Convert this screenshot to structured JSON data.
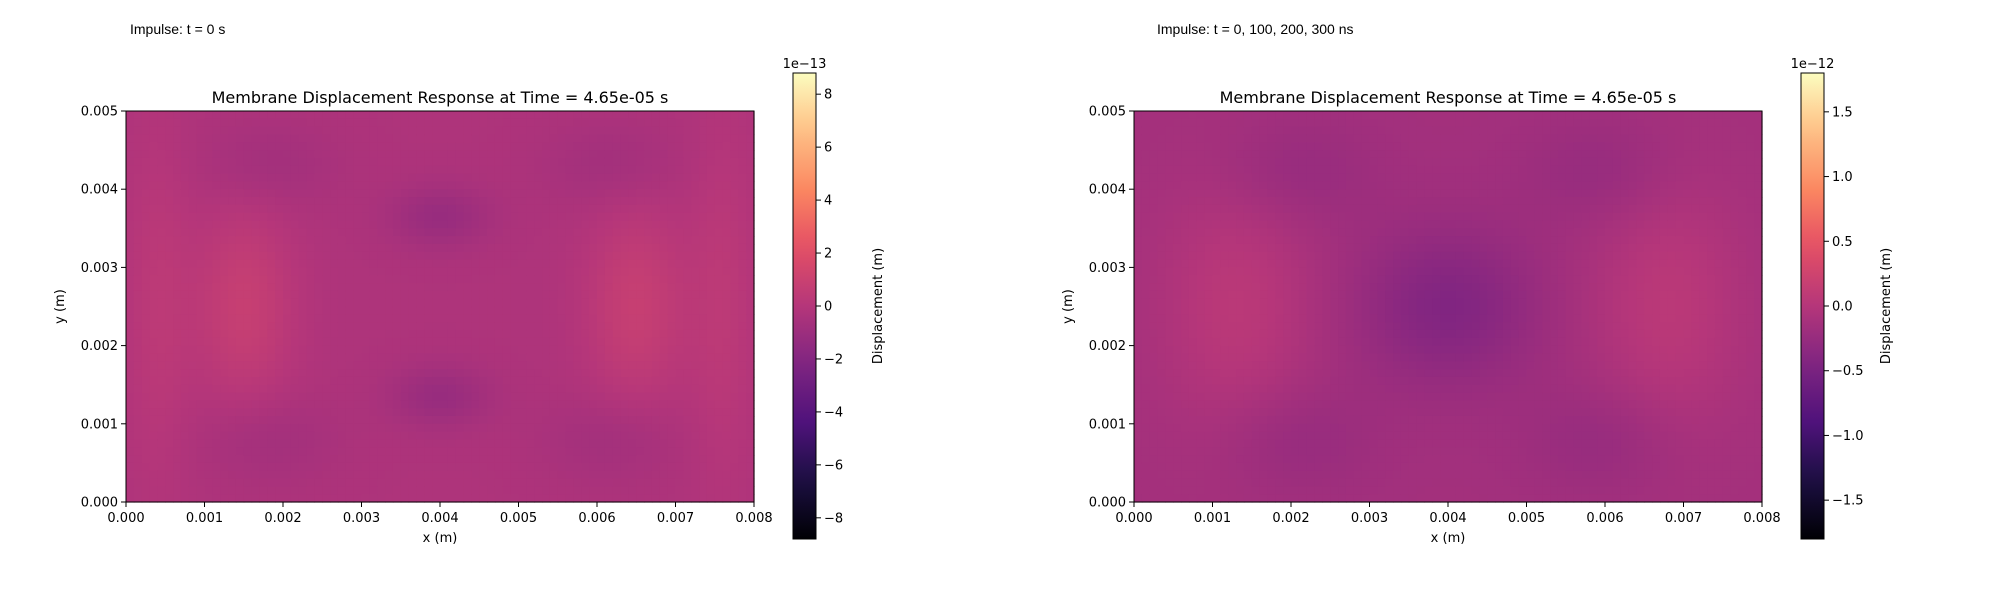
{
  "chart_data": [
    {
      "type": "heatmap",
      "caption": "Impulse: t = 0 s",
      "title": "Membrane Displacement Response at Time = 4.65e-05 s",
      "xlabel": "x (m)",
      "ylabel": "y (m)",
      "xlim": [
        0,
        0.008
      ],
      "ylim": [
        0,
        0.005
      ],
      "xticks": [
        "0.000",
        "0.001",
        "0.002",
        "0.003",
        "0.004",
        "0.005",
        "0.006",
        "0.007",
        "0.008"
      ],
      "yticks": [
        "0.000",
        "0.001",
        "0.002",
        "0.003",
        "0.004",
        "0.005"
      ],
      "colormap": "magma",
      "colorbar": {
        "label": "Displacement (m)",
        "multiplier": "1e−13",
        "range": [
          -8.8,
          8.8
        ],
        "ticks": [
          -8,
          -6,
          -4,
          -2,
          0,
          2,
          4,
          6,
          8
        ],
        "tick_labels": [
          "−8",
          "−6",
          "−4",
          "−2",
          "0",
          "2",
          "4",
          "6",
          "8"
        ]
      },
      "field": {
        "base_value": -0.3,
        "features": [
          {
            "x": 0.0015,
            "y": 0.0025,
            "amplitude": 1.1,
            "sigma_x": 0.00045,
            "sigma_y": 0.0009
          },
          {
            "x": 0.0065,
            "y": 0.0025,
            "amplitude": 1.1,
            "sigma_x": 0.00045,
            "sigma_y": 0.0009
          },
          {
            "x": 0.0004,
            "y": 0.0025,
            "amplitude": 0.6,
            "sigma_x": 0.0003,
            "sigma_y": 0.0016
          },
          {
            "x": 0.0076,
            "y": 0.0025,
            "amplitude": 0.6,
            "sigma_x": 0.0003,
            "sigma_y": 0.0016
          },
          {
            "x": 0.004,
            "y": 0.00365,
            "amplitude": -0.9,
            "sigma_x": 0.00045,
            "sigma_y": 0.00028
          },
          {
            "x": 0.004,
            "y": 0.00135,
            "amplitude": -0.9,
            "sigma_x": 0.00045,
            "sigma_y": 0.00028
          },
          {
            "x": 0.0018,
            "y": 0.0043,
            "amplitude": -0.5,
            "sigma_x": 0.0006,
            "sigma_y": 0.0004
          },
          {
            "x": 0.0062,
            "y": 0.0043,
            "amplitude": -0.5,
            "sigma_x": 0.0006,
            "sigma_y": 0.0004
          },
          {
            "x": 0.0018,
            "y": 0.0008,
            "amplitude": -0.5,
            "sigma_x": 0.0006,
            "sigma_y": 0.0004
          },
          {
            "x": 0.0062,
            "y": 0.0008,
            "amplitude": -0.5,
            "sigma_x": 0.0006,
            "sigma_y": 0.0004
          }
        ]
      }
    },
    {
      "type": "heatmap",
      "caption": "Impulse: t = 0, 100, 200, 300 ns",
      "title": "Membrane Displacement Response at Time = 4.65e-05 s",
      "xlabel": "x (m)",
      "ylabel": "y (m)",
      "xlim": [
        0,
        0.008
      ],
      "ylim": [
        0,
        0.005
      ],
      "xticks": [
        "0.000",
        "0.001",
        "0.002",
        "0.003",
        "0.004",
        "0.005",
        "0.006",
        "0.007",
        "0.008"
      ],
      "yticks": [
        "0.000",
        "0.001",
        "0.002",
        "0.003",
        "0.004",
        "0.005"
      ],
      "colormap": "magma",
      "colorbar": {
        "label": "Displacement (m)",
        "multiplier": "1e−12",
        "range": [
          -1.8,
          1.8
        ],
        "ticks": [
          -1.5,
          -1.0,
          -0.5,
          0.0,
          0.5,
          1.0,
          1.5
        ],
        "tick_labels": [
          "−1.5",
          "−1.0",
          "−0.5",
          "0.0",
          "0.5",
          "1.0",
          "1.5"
        ]
      },
      "field": {
        "base_value": -0.15,
        "features": [
          {
            "x": 0.004,
            "y": 0.0025,
            "amplitude": -0.28,
            "sigma_x": 0.0008,
            "sigma_y": 0.0007
          },
          {
            "x": 0.0013,
            "y": 0.0025,
            "amplitude": 0.2,
            "sigma_x": 0.0007,
            "sigma_y": 0.0012
          },
          {
            "x": 0.0068,
            "y": 0.0025,
            "amplitude": 0.2,
            "sigma_x": 0.0007,
            "sigma_y": 0.0012
          },
          {
            "x": 0.002,
            "y": 0.0042,
            "amplitude": -0.12,
            "sigma_x": 0.0007,
            "sigma_y": 0.0005
          },
          {
            "x": 0.006,
            "y": 0.0042,
            "amplitude": -0.12,
            "sigma_x": 0.0007,
            "sigma_y": 0.0005
          },
          {
            "x": 0.002,
            "y": 0.0008,
            "amplitude": -0.12,
            "sigma_x": 0.0007,
            "sigma_y": 0.0005
          },
          {
            "x": 0.006,
            "y": 0.0008,
            "amplitude": -0.12,
            "sigma_x": 0.0007,
            "sigma_y": 0.0005
          }
        ]
      }
    }
  ]
}
